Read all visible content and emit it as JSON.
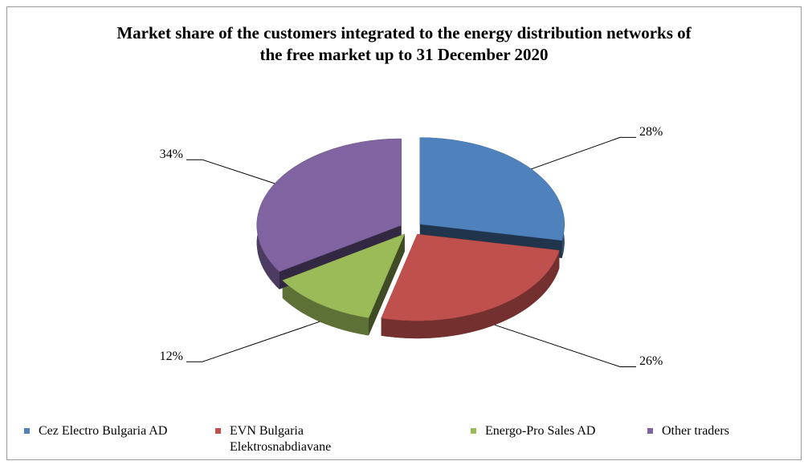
{
  "chart_data": {
    "type": "pie",
    "title": "Market share of the customers integrated to the energy distribution networks of the free market up to 31 December 2020",
    "categories": [
      "Cez Electro Bulgaria AD",
      "EVN Bulgaria Elektrosnabdiavane",
      "Energo-Pro Sales AD",
      "Other traders"
    ],
    "values": [
      28,
      26,
      12,
      34
    ],
    "value_labels": [
      "28%",
      "26%",
      "12%",
      "34%"
    ],
    "colors": [
      "#4f81bd",
      "#c0504d",
      "#9bbb59",
      "#8064a2"
    ],
    "legend": "bottom"
  }
}
